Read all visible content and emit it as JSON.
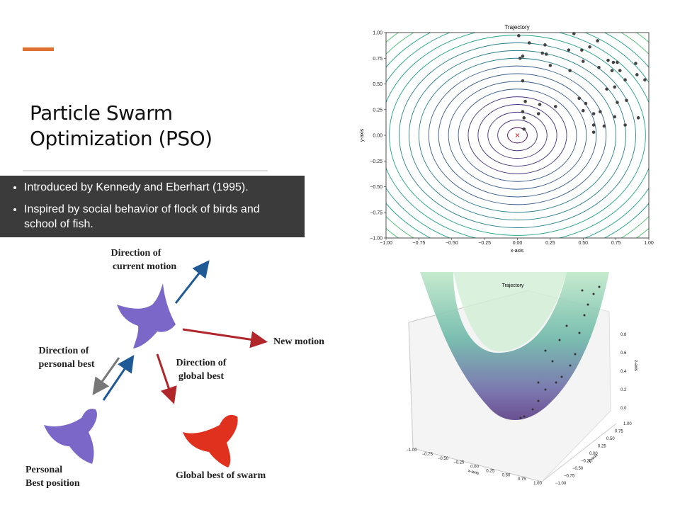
{
  "header": {
    "title": [
      "Particle Swarm",
      "Optimization (PSO)"
    ]
  },
  "bullets": [
    "Introduced by Kennedy and Eberhart  (1995).",
    "Inspired by social behavior of flock of birds and school of fish."
  ],
  "diagram": {
    "labels": [
      [
        "Direction of",
        "current motion"
      ],
      [
        "New motion"
      ],
      [
        "Direction of",
        "personal best"
      ],
      [
        "Direction of",
        "global best"
      ],
      [
        "Personal",
        "Best position"
      ],
      [
        "Global best of swarm"
      ]
    ]
  },
  "contour_plot": {
    "title": "Trajectory",
    "x_label": "x-axis",
    "y_label": "y-axis",
    "xlim": [
      -1,
      1
    ],
    "ylim": [
      -1,
      1
    ],
    "xticks": [
      {
        "value": -1,
        "label": "−1.00"
      },
      {
        "value": -0.75,
        "label": "−0.75"
      },
      {
        "value": -0.5,
        "label": "−0.50"
      },
      {
        "value": -0.25,
        "label": "−0.25"
      },
      {
        "value": 0,
        "label": "0.00"
      },
      {
        "value": 0.25,
        "label": "0.25"
      },
      {
        "value": 0.5,
        "label": "0.50"
      },
      {
        "value": 0.75,
        "label": "0.75"
      },
      {
        "value": 1,
        "label": "1.00"
      }
    ],
    "yticks": [
      {
        "value": -1,
        "label": "−1.00"
      },
      {
        "value": -0.75,
        "label": "−0.75"
      },
      {
        "value": -0.5,
        "label": "−0.50"
      },
      {
        "value": -0.25,
        "label": "−0.25"
      },
      {
        "value": 0,
        "label": "0.00"
      },
      {
        "value": 0.25,
        "label": "0.25"
      },
      {
        "value": 0.5,
        "label": "0.50"
      },
      {
        "value": 0.75,
        "label": "0.75"
      },
      {
        "value": 1,
        "label": "1.00"
      }
    ],
    "optimum": {
      "x": 0,
      "y": 0,
      "color": "#e03030"
    },
    "point_color": "#444",
    "x": [
      0.01,
      0.43,
      0.09,
      0.21,
      0.22,
      0.19,
      0.02,
      0.04,
      0.04,
      0.39,
      0.49,
      0.61,
      0.5,
      0.69,
      0.55,
      0.73,
      0.76,
      0.78,
      0.62,
      0.72,
      0.9,
      0.91,
      0.97,
      0.82,
      0.25,
      0.4,
      0.68,
      0.74,
      0.47,
      0.52,
      0.5,
      0.63,
      0.58,
      0.76,
      0.83,
      0.06,
      0.17,
      0.29,
      0.04,
      0.16,
      0.05,
      0.58,
      0.66,
      0.74,
      0.82,
      0.92,
      0.58,
      0.05
    ],
    "y": [
      0.97,
      0.99,
      0.9,
      0.88,
      0.79,
      0.8,
      0.75,
      0.77,
      0.53,
      0.83,
      0.83,
      0.92,
      0.72,
      0.73,
      0.86,
      0.71,
      0.71,
      0.63,
      0.66,
      0.63,
      0.7,
      0.59,
      0.54,
      0.54,
      0.68,
      0.63,
      0.45,
      0.47,
      0.36,
      0.31,
      0.24,
      0.23,
      0.21,
      0.32,
      0.34,
      0.33,
      0.3,
      0.28,
      0.23,
      0.21,
      0.17,
      0.1,
      0.09,
      0.18,
      0.1,
      0.17,
      0.03,
      0.06
    ]
  },
  "surface_plot": {
    "title": "Trajectory",
    "x_label": "x-axis",
    "y_label": "y-axis",
    "z_label": "z-axis",
    "xticks": [
      "−1.00",
      "−0.75",
      "−0.50",
      "−0.25",
      "0.00",
      "0.25",
      "0.50",
      "0.75",
      "1.00"
    ],
    "yticks": [
      "−1.00",
      "−0.75",
      "−0.50",
      "−0.25",
      "0.00",
      "0.25",
      "0.50",
      "0.75",
      "1.00"
    ],
    "zticks": [
      "0.0",
      "0.2",
      "0.4",
      "0.6",
      "0.8"
    ]
  }
}
